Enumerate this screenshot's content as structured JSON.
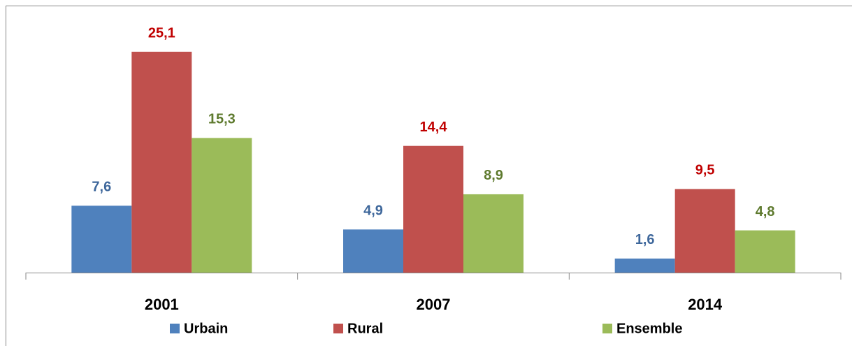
{
  "chart_data": {
    "type": "bar",
    "categories": [
      "2001",
      "2007",
      "2014"
    ],
    "series": [
      {
        "name": "Urbain",
        "color": "#4f81bd",
        "label_color": "#3e679b",
        "values": [
          7.6,
          4.9,
          1.6
        ],
        "value_labels": [
          "7,6",
          "4,9",
          "1,6"
        ]
      },
      {
        "name": "Rural",
        "color": "#c0504d",
        "label_color": "#c00000",
        "values": [
          25.1,
          14.4,
          9.5
        ],
        "value_labels": [
          "25,1",
          "14,4",
          "9,5"
        ]
      },
      {
        "name": "Ensemble",
        "color": "#9bbb59",
        "label_color": "#5e7a2e",
        "values": [
          15.3,
          8.9,
          4.8
        ],
        "value_labels": [
          "15,3",
          "8,9",
          "4,8"
        ]
      }
    ]
  }
}
